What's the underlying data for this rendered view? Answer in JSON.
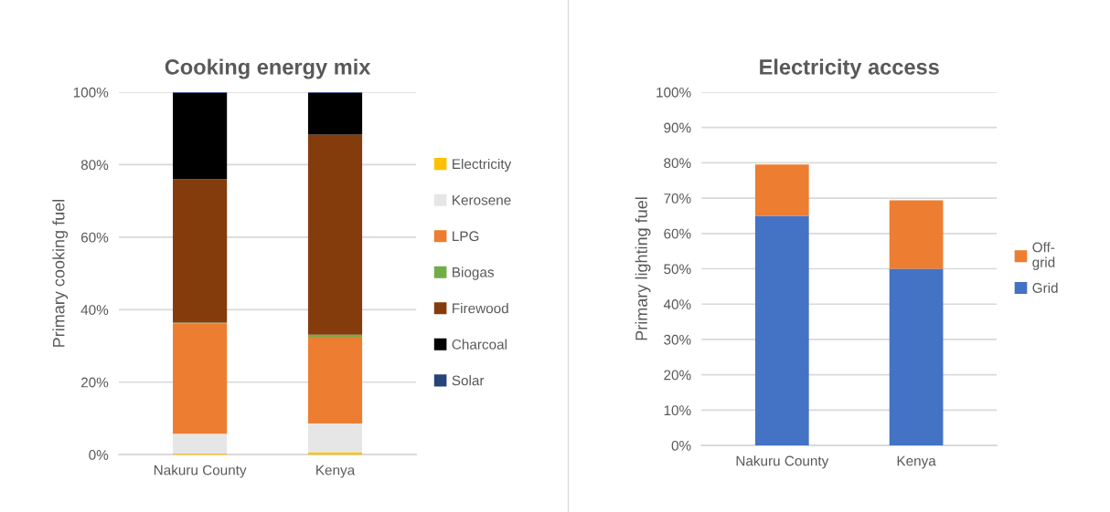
{
  "chart_data": [
    {
      "type": "bar",
      "title": "Cooking energy mix",
      "ylabel": "Primary cooking fuel",
      "categories": [
        "Nakuru County",
        "Kenya"
      ],
      "stacked": true,
      "legend": "right",
      "grid": "y",
      "ylim": [
        0,
        100
      ],
      "yticks": [
        {
          "value": 0,
          "label": "0%"
        },
        {
          "value": 20,
          "label": "20%"
        },
        {
          "value": 40,
          "label": "40%"
        },
        {
          "value": 60,
          "label": "60%"
        },
        {
          "value": 80,
          "label": "80%"
        },
        {
          "value": 100,
          "label": "100%"
        }
      ],
      "series": [
        {
          "name": "Electricity",
          "color": "#ffc000",
          "values": [
            0.3,
            0.7
          ]
        },
        {
          "name": "Kerosene",
          "color": "#e7e6e6",
          "values": [
            5.5,
            7.9
          ]
        },
        {
          "name": "LPG",
          "color": "#ed7d31",
          "values": [
            30.3,
            23.9
          ]
        },
        {
          "name": "Biogas",
          "color": "#70ad47",
          "values": [
            0.3,
            0.6
          ]
        },
        {
          "name": "Firewood",
          "color": "#843c0c",
          "values": [
            39.6,
            55.2
          ]
        },
        {
          "name": "Charcoal",
          "color": "#000000",
          "values": [
            23.8,
            11.5
          ]
        },
        {
          "name": "Solar",
          "color": "#264478",
          "values": [
            0.2,
            0.2
          ]
        }
      ]
    },
    {
      "type": "bar",
      "title": "Electricity access",
      "ylabel": "Primary lighting fuel",
      "categories": [
        "Nakuru County",
        "Kenya"
      ],
      "stacked": true,
      "legend": "right",
      "grid": "y",
      "ylim": [
        0,
        100
      ],
      "yticks": [
        {
          "value": 0,
          "label": "0%"
        },
        {
          "value": 10,
          "label": "10%"
        },
        {
          "value": 20,
          "label": "20%"
        },
        {
          "value": 30,
          "label": "30%"
        },
        {
          "value": 40,
          "label": "40%"
        },
        {
          "value": 50,
          "label": "50%"
        },
        {
          "value": 60,
          "label": "60%"
        },
        {
          "value": 70,
          "label": "70%"
        },
        {
          "value": 80,
          "label": "80%"
        },
        {
          "value": 90,
          "label": "90%"
        },
        {
          "value": 100,
          "label": "100%"
        }
      ],
      "series": [
        {
          "name": "Grid",
          "color": "#4472c4",
          "values": [
            65.0,
            50.0
          ]
        },
        {
          "name": "Off-grid",
          "color": "#ed7d31",
          "values": [
            14.5,
            19.4
          ]
        }
      ]
    }
  ]
}
